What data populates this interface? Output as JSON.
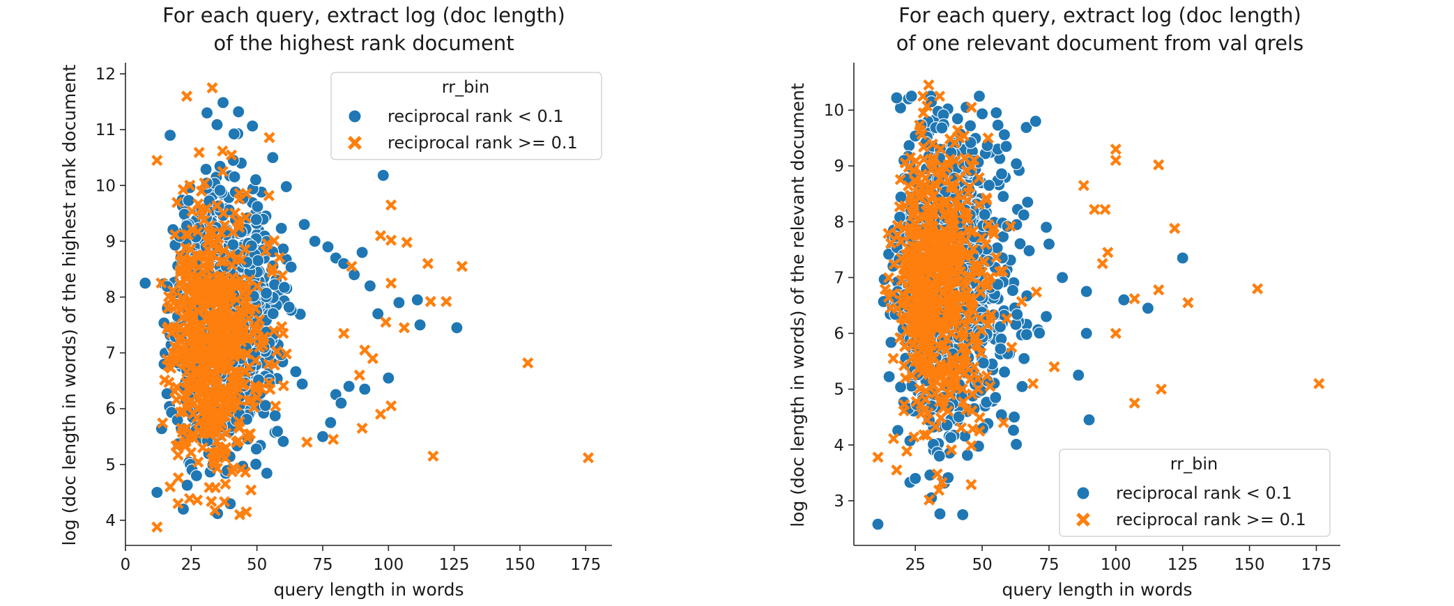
{
  "chart_data": [
    {
      "type": "scatter",
      "title_line1": "For each query, extract log (doc length)",
      "title_line2": "of the highest rank document",
      "xlabel": "query length in words",
      "ylabel": "log (doc length in words) of the highest rank document",
      "xlim": [
        0,
        185
      ],
      "ylim": [
        3.55,
        12.2
      ],
      "xticks": [
        0,
        25,
        50,
        75,
        100,
        125,
        150,
        175
      ],
      "yticks": [
        4,
        5,
        6,
        7,
        8,
        9,
        10,
        11,
        12
      ],
      "grid": false,
      "legend": {
        "title": "rr_bin",
        "position": "top-right",
        "entries": [
          "reciprocal rank < 0.1",
          "reciprocal rank >= 0.1"
        ]
      },
      "series": [
        {
          "name": "reciprocal rank < 0.1",
          "color": "#1f77b4",
          "marker": "circle",
          "cloud": {
            "x_center": 30,
            "x_spread": 13,
            "y_center": 7.6,
            "y_spread": 1.05,
            "count": 1200
          },
          "points": [
            [
              7.5,
              8.25
            ],
            [
              17,
              10.9
            ],
            [
              31,
              11.3
            ],
            [
              43,
              11.32
            ],
            [
              56,
              10.5
            ],
            [
              98,
              10.18
            ],
            [
              44,
              10.4
            ],
            [
              41,
              10.45
            ],
            [
              68,
              9.3
            ],
            [
              72,
              9.0
            ],
            [
              77,
              8.9
            ],
            [
              80,
              8.7
            ],
            [
              83,
              8.6
            ],
            [
              87,
              8.4
            ],
            [
              90,
              8.8
            ],
            [
              93,
              8.2
            ],
            [
              96,
              7.7
            ],
            [
              104,
              7.9
            ],
            [
              111,
              7.95
            ],
            [
              112,
              7.5
            ],
            [
              126,
              7.45
            ],
            [
              100,
              6.55
            ],
            [
              91,
              6.35
            ],
            [
              85,
              6.4
            ],
            [
              82,
              6.1
            ],
            [
              78,
              5.75
            ],
            [
              75,
              5.5
            ],
            [
              35,
              4.12
            ],
            [
              22,
              4.2
            ],
            [
              12,
              4.5
            ],
            [
              27,
              4.8
            ]
          ]
        },
        {
          "name": "reciprocal rank >= 0.1",
          "color": "#ff7f0e",
          "marker": "x",
          "cloud": {
            "x_center": 28,
            "x_spread": 12,
            "y_center": 7.2,
            "y_spread": 1.2,
            "count": 650
          },
          "points": [
            [
              33,
              11.75
            ],
            [
              12,
              10.45
            ],
            [
              37,
              10.25
            ],
            [
              101,
              9.65
            ],
            [
              97,
              9.1
            ],
            [
              101,
              9.02
            ],
            [
              107,
              8.98
            ],
            [
              115,
              8.6
            ],
            [
              128,
              8.55
            ],
            [
              86,
              8.55
            ],
            [
              101,
              8.25
            ],
            [
              116,
              7.92
            ],
            [
              122,
              7.92
            ],
            [
              99,
              7.55
            ],
            [
              106,
              7.45
            ],
            [
              83,
              7.35
            ],
            [
              94,
              6.9
            ],
            [
              91,
              7.05
            ],
            [
              153,
              6.82
            ],
            [
              89,
              6.6
            ],
            [
              101,
              6.05
            ],
            [
              97,
              5.9
            ],
            [
              90,
              5.65
            ],
            [
              79,
              5.45
            ],
            [
              69,
              5.4
            ],
            [
              117,
              5.15
            ],
            [
              176,
              5.12
            ],
            [
              38,
              4.65
            ],
            [
              20,
              4.3
            ],
            [
              12,
              3.88
            ],
            [
              17,
              4.6
            ]
          ]
        }
      ]
    },
    {
      "type": "scatter",
      "title_line1": "For each query, extract log (doc length)",
      "title_line2": "of one relevant document from val qrels",
      "xlabel": "query length in words",
      "ylabel": "log (doc length in words) of the relevant document",
      "xlim": [
        2,
        184
      ],
      "ylim": [
        2.2,
        10.85
      ],
      "xticks": [
        25,
        50,
        75,
        100,
        125,
        150,
        175
      ],
      "yticks": [
        3,
        4,
        5,
        6,
        7,
        8,
        9,
        10
      ],
      "grid": false,
      "legend": {
        "title": "rr_bin",
        "position": "bottom-right",
        "entries": [
          "reciprocal rank < 0.1",
          "reciprocal rank >= 0.1"
        ]
      },
      "series": [
        {
          "name": "reciprocal rank < 0.1",
          "color": "#1f77b4",
          "marker": "circle",
          "cloud": {
            "x_center": 30,
            "x_spread": 13,
            "y_center": 6.9,
            "y_spread": 1.25,
            "count": 1200
          },
          "points": [
            [
              11,
              2.58
            ],
            [
              23,
              3.33
            ],
            [
              25,
              3.4
            ],
            [
              34,
              3.8
            ],
            [
              18,
              10.22
            ],
            [
              44,
              10.05
            ],
            [
              70,
              9.8
            ],
            [
              59,
              9.35
            ],
            [
              67,
              8.35
            ],
            [
              74,
              7.9
            ],
            [
              75,
              7.6
            ],
            [
              80,
              7.0
            ],
            [
              89,
              6.75
            ],
            [
              103,
              6.6
            ],
            [
              112,
              6.45
            ],
            [
              125,
              7.35
            ],
            [
              86,
              5.25
            ],
            [
              89,
              6.0
            ],
            [
              90,
              4.45
            ],
            [
              74,
              6.3
            ],
            [
              62,
              4.5
            ],
            [
              55,
              4.85
            ],
            [
              47,
              4.65
            ]
          ]
        },
        {
          "name": "reciprocal rank >= 0.1",
          "color": "#ff7f0e",
          "marker": "x",
          "cloud": {
            "x_center": 28,
            "x_spread": 12,
            "y_center": 6.8,
            "y_spread": 1.3,
            "count": 650
          },
          "points": [
            [
              30,
              10.45
            ],
            [
              46,
              10.05
            ],
            [
              35,
              3.33
            ],
            [
              11,
              3.78
            ],
            [
              18,
              3.55
            ],
            [
              100,
              9.3
            ],
            [
              100,
              9.1
            ],
            [
              116,
              9.02
            ],
            [
              88,
              8.65
            ],
            [
              92,
              8.22
            ],
            [
              96,
              8.22
            ],
            [
              122,
              7.88
            ],
            [
              97,
              7.45
            ],
            [
              95,
              7.25
            ],
            [
              107,
              6.62
            ],
            [
              116,
              6.78
            ],
            [
              127,
              6.55
            ],
            [
              153,
              6.8
            ],
            [
              100,
              6.0
            ],
            [
              107,
              4.75
            ],
            [
              117,
              5.0
            ],
            [
              176,
              5.1
            ],
            [
              77,
              5.4
            ],
            [
              69,
              5.1
            ],
            [
              58,
              4.4
            ],
            [
              49,
              4.25
            ]
          ]
        }
      ]
    }
  ]
}
